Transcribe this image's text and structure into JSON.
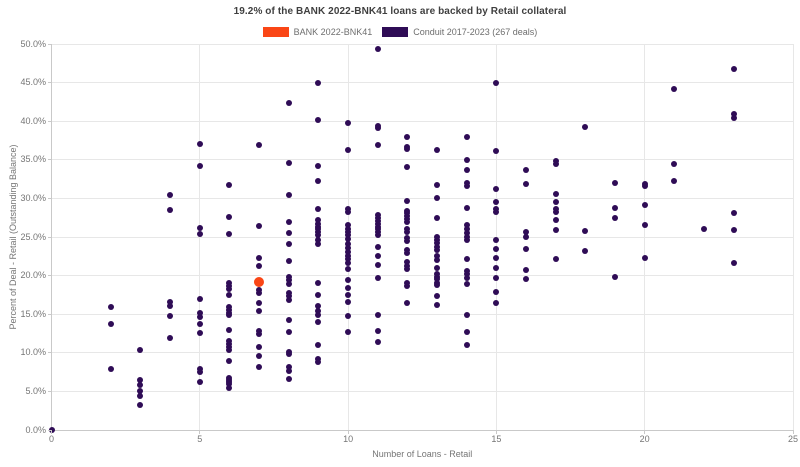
{
  "title": "19.2% of the BANK 2022-BNK41 loans are backed by Retail collateral",
  "legend": [
    {
      "label": "BANK 2022-BNK41",
      "color": "#fa4616"
    },
    {
      "label": "Conduit 2017-2023 (267 deals)",
      "color": "#2f0c56"
    }
  ],
  "chart_data": {
    "type": "scatter",
    "title": "19.2% of the BANK 2022-BNK41 loans are backed by Retail collateral",
    "xlabel": "Number of Loans - Retail",
    "ylabel": "Percent of Deal - Retail (Outstanding Balance)",
    "xlim": [
      0,
      25
    ],
    "ylim": [
      0,
      50
    ],
    "x_tick_values": [
      0,
      5,
      10,
      15,
      20,
      25
    ],
    "x_tick_labels": [
      "0",
      "5",
      "10",
      "15",
      "20",
      "25"
    ],
    "y_tick_values": [
      0,
      5,
      10,
      15,
      20,
      25,
      30,
      35,
      40,
      45,
      50
    ],
    "y_tick_labels": [
      "0.0%",
      "5.0%",
      "10.0%",
      "15.0%",
      "20.0%",
      "25.0%",
      "30.0%",
      "35.0%",
      "40.0%",
      "45.0%",
      "50.0%"
    ],
    "grid": true,
    "legend_position": "top",
    "series": [
      {
        "name": "BANK 2022-BNK41",
        "color": "#fa4616",
        "marker_px": 10,
        "points": [
          [
            7,
            19.2
          ]
        ]
      },
      {
        "name": "Conduit 2017-2023 (267 deals)",
        "color": "#2f0c56",
        "marker_px": 6,
        "points": [
          [
            0,
            0.0
          ],
          [
            2,
            15.9
          ],
          [
            2,
            13.7
          ],
          [
            2,
            7.9
          ],
          [
            3,
            10.3
          ],
          [
            3,
            6.5
          ],
          [
            3,
            5.8
          ],
          [
            3,
            5.1
          ],
          [
            3,
            4.4
          ],
          [
            3,
            3.3
          ],
          [
            4,
            30.4
          ],
          [
            4,
            28.5
          ],
          [
            4,
            16.6
          ],
          [
            4,
            16.0
          ],
          [
            4,
            14.8
          ],
          [
            4,
            11.9
          ],
          [
            5,
            37.0
          ],
          [
            5,
            34.2
          ],
          [
            5,
            26.2
          ],
          [
            5,
            25.4
          ],
          [
            5,
            17.0
          ],
          [
            5,
            15.2
          ],
          [
            5,
            14.6
          ],
          [
            5,
            13.7
          ],
          [
            5,
            12.6
          ],
          [
            5,
            7.9
          ],
          [
            5,
            7.5
          ],
          [
            5,
            6.2
          ],
          [
            6,
            31.8
          ],
          [
            6,
            27.6
          ],
          [
            6,
            25.4
          ],
          [
            6,
            19.0
          ],
          [
            6,
            18.6
          ],
          [
            6,
            18.2
          ],
          [
            6,
            17.5
          ],
          [
            6,
            15.9
          ],
          [
            6,
            15.6
          ],
          [
            6,
            15.2
          ],
          [
            6,
            14.9
          ],
          [
            6,
            12.9
          ],
          [
            6,
            11.5
          ],
          [
            6,
            11.1
          ],
          [
            6,
            10.7
          ],
          [
            6,
            10.3
          ],
          [
            6,
            9.0
          ],
          [
            6,
            6.8
          ],
          [
            6,
            6.5
          ],
          [
            6,
            6.2
          ],
          [
            6,
            5.9
          ],
          [
            6,
            5.4
          ],
          [
            7,
            36.9
          ],
          [
            7,
            26.4
          ],
          [
            7,
            22.3
          ],
          [
            7,
            21.2
          ],
          [
            7,
            18.1
          ],
          [
            7,
            17.7
          ],
          [
            7,
            16.4
          ],
          [
            7,
            15.4
          ],
          [
            7,
            12.8
          ],
          [
            7,
            12.5
          ],
          [
            7,
            10.8
          ],
          [
            7,
            9.6
          ],
          [
            7,
            8.2
          ],
          [
            8,
            42.3
          ],
          [
            8,
            34.6
          ],
          [
            8,
            30.4
          ],
          [
            8,
            27.0
          ],
          [
            8,
            25.5
          ],
          [
            8,
            24.1
          ],
          [
            8,
            21.9
          ],
          [
            8,
            19.8
          ],
          [
            8,
            19.4
          ],
          [
            8,
            18.9
          ],
          [
            8,
            17.8
          ],
          [
            8,
            17.3
          ],
          [
            8,
            16.9
          ],
          [
            8,
            14.2
          ],
          [
            8,
            12.7
          ],
          [
            8,
            10.1
          ],
          [
            8,
            9.8
          ],
          [
            8,
            8.1
          ],
          [
            8,
            7.7
          ],
          [
            8,
            6.6
          ],
          [
            9,
            45.0
          ],
          [
            9,
            40.1
          ],
          [
            9,
            34.2
          ],
          [
            9,
            32.3
          ],
          [
            9,
            28.6
          ],
          [
            9,
            27.2
          ],
          [
            9,
            26.7
          ],
          [
            9,
            26.3
          ],
          [
            9,
            26.0
          ],
          [
            9,
            25.6
          ],
          [
            9,
            25.3
          ],
          [
            9,
            24.6
          ],
          [
            9,
            24.1
          ],
          [
            9,
            19.0
          ],
          [
            9,
            17.5
          ],
          [
            9,
            16.0
          ],
          [
            9,
            15.4
          ],
          [
            9,
            14.9
          ],
          [
            9,
            14.0
          ],
          [
            9,
            11.0
          ],
          [
            9,
            9.2
          ],
          [
            9,
            8.8
          ],
          [
            10,
            39.8
          ],
          [
            10,
            36.3
          ],
          [
            10,
            28.6
          ],
          [
            10,
            28.2
          ],
          [
            10,
            26.5
          ],
          [
            10,
            26.1
          ],
          [
            10,
            25.7
          ],
          [
            10,
            25.2
          ],
          [
            10,
            24.7
          ],
          [
            10,
            24.1
          ],
          [
            10,
            23.6
          ],
          [
            10,
            23.1
          ],
          [
            10,
            22.5
          ],
          [
            10,
            22.1
          ],
          [
            10,
            21.6
          ],
          [
            10,
            20.9
          ],
          [
            10,
            19.4
          ],
          [
            10,
            18.4
          ],
          [
            10,
            17.5
          ],
          [
            10,
            16.6
          ],
          [
            10,
            14.8
          ],
          [
            10,
            12.7
          ],
          [
            11,
            49.3
          ],
          [
            11,
            39.4
          ],
          [
            11,
            39.1
          ],
          [
            11,
            36.9
          ],
          [
            11,
            27.8
          ],
          [
            11,
            27.4
          ],
          [
            11,
            27.1
          ],
          [
            11,
            26.7
          ],
          [
            11,
            26.3
          ],
          [
            11,
            26.0
          ],
          [
            11,
            25.6
          ],
          [
            11,
            25.3
          ],
          [
            11,
            23.7
          ],
          [
            11,
            22.6
          ],
          [
            11,
            21.4
          ],
          [
            11,
            19.7
          ],
          [
            11,
            14.9
          ],
          [
            11,
            12.8
          ],
          [
            11,
            11.4
          ],
          [
            12,
            38.0
          ],
          [
            12,
            36.7
          ],
          [
            12,
            36.4
          ],
          [
            12,
            34.1
          ],
          [
            12,
            29.7
          ],
          [
            12,
            28.4
          ],
          [
            12,
            28.1
          ],
          [
            12,
            27.7
          ],
          [
            12,
            27.3
          ],
          [
            12,
            27.0
          ],
          [
            12,
            26.0
          ],
          [
            12,
            25.7
          ],
          [
            12,
            24.9
          ],
          [
            12,
            24.5
          ],
          [
            12,
            23.3
          ],
          [
            12,
            22.9
          ],
          [
            12,
            21.7
          ],
          [
            12,
            21.3
          ],
          [
            12,
            20.9
          ],
          [
            12,
            19.0
          ],
          [
            12,
            18.6
          ],
          [
            12,
            16.4
          ],
          [
            13,
            36.3
          ],
          [
            13,
            31.8
          ],
          [
            13,
            30.1
          ],
          [
            13,
            27.5
          ],
          [
            13,
            25.0
          ],
          [
            13,
            24.6
          ],
          [
            13,
            24.2
          ],
          [
            13,
            23.7
          ],
          [
            13,
            23.3
          ],
          [
            13,
            22.5
          ],
          [
            13,
            22.0
          ],
          [
            13,
            21.0
          ],
          [
            13,
            20.2
          ],
          [
            13,
            19.8
          ],
          [
            13,
            19.5
          ],
          [
            13,
            19.1
          ],
          [
            13,
            18.8
          ],
          [
            13,
            17.3
          ],
          [
            13,
            16.2
          ],
          [
            14,
            38.0
          ],
          [
            14,
            35.0
          ],
          [
            14,
            33.7
          ],
          [
            14,
            32.0
          ],
          [
            14,
            31.6
          ],
          [
            14,
            28.8
          ],
          [
            14,
            26.5
          ],
          [
            14,
            26.0
          ],
          [
            14,
            25.5
          ],
          [
            14,
            25.0
          ],
          [
            14,
            24.6
          ],
          [
            14,
            22.2
          ],
          [
            14,
            20.6
          ],
          [
            14,
            20.2
          ],
          [
            14,
            19.7
          ],
          [
            14,
            18.9
          ],
          [
            14,
            14.9
          ],
          [
            14,
            12.7
          ],
          [
            14,
            11.0
          ],
          [
            15,
            44.9
          ],
          [
            15,
            36.1
          ],
          [
            15,
            31.2
          ],
          [
            15,
            29.5
          ],
          [
            15,
            28.6
          ],
          [
            15,
            28.3
          ],
          [
            15,
            24.6
          ],
          [
            15,
            23.4
          ],
          [
            15,
            22.3
          ],
          [
            15,
            21.0
          ],
          [
            15,
            19.7
          ],
          [
            15,
            17.9
          ],
          [
            15,
            16.5
          ],
          [
            16,
            33.7
          ],
          [
            16,
            31.9
          ],
          [
            16,
            25.6
          ],
          [
            16,
            25.0
          ],
          [
            16,
            23.4
          ],
          [
            16,
            20.7
          ],
          [
            16,
            19.5
          ],
          [
            17,
            34.9
          ],
          [
            17,
            34.4
          ],
          [
            17,
            30.6
          ],
          [
            17,
            29.5
          ],
          [
            17,
            28.6
          ],
          [
            17,
            28.3
          ],
          [
            17,
            27.2
          ],
          [
            17,
            25.9
          ],
          [
            17,
            22.2
          ],
          [
            18,
            39.2
          ],
          [
            18,
            25.8
          ],
          [
            18,
            23.2
          ],
          [
            19,
            32.0
          ],
          [
            19,
            28.8
          ],
          [
            19,
            27.4
          ],
          [
            19,
            19.8
          ],
          [
            20,
            31.9
          ],
          [
            20,
            31.6
          ],
          [
            20,
            29.2
          ],
          [
            20,
            26.6
          ],
          [
            20,
            22.3
          ],
          [
            21,
            44.2
          ],
          [
            21,
            34.5
          ],
          [
            21,
            32.2
          ],
          [
            22,
            26.0
          ],
          [
            23,
            46.8
          ],
          [
            23,
            40.9
          ],
          [
            23,
            40.4
          ],
          [
            23,
            28.1
          ],
          [
            23,
            25.9
          ],
          [
            23,
            21.6
          ]
        ]
      }
    ]
  }
}
